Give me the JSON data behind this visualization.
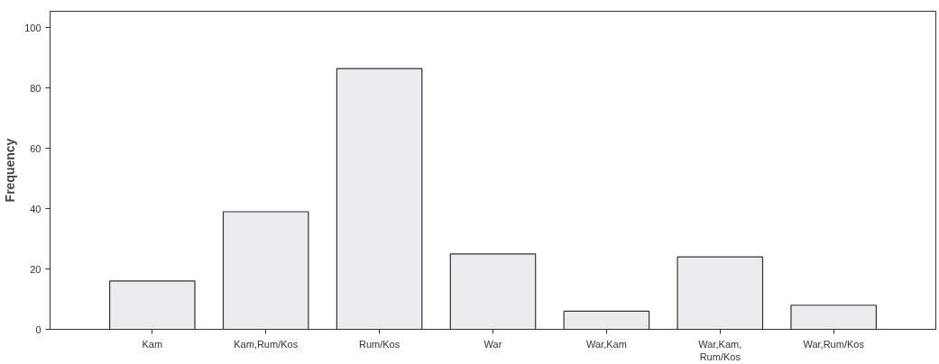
{
  "chart_data": {
    "type": "bar",
    "ylabel": "Frequency",
    "categories": [
      "Kam",
      "Kam,Rum/Kos",
      "Rum/Kos",
      "War",
      "War,Kam",
      "War,Kam,\nRum/Kos",
      "War,Rum/Kos"
    ],
    "values": [
      16,
      39,
      86.5,
      25,
      6,
      24,
      8
    ],
    "color": "#ececf0",
    "ylim": [
      0,
      105.5
    ],
    "yticks": [
      0,
      20,
      40,
      60,
      80,
      100
    ],
    "grid": false
  }
}
